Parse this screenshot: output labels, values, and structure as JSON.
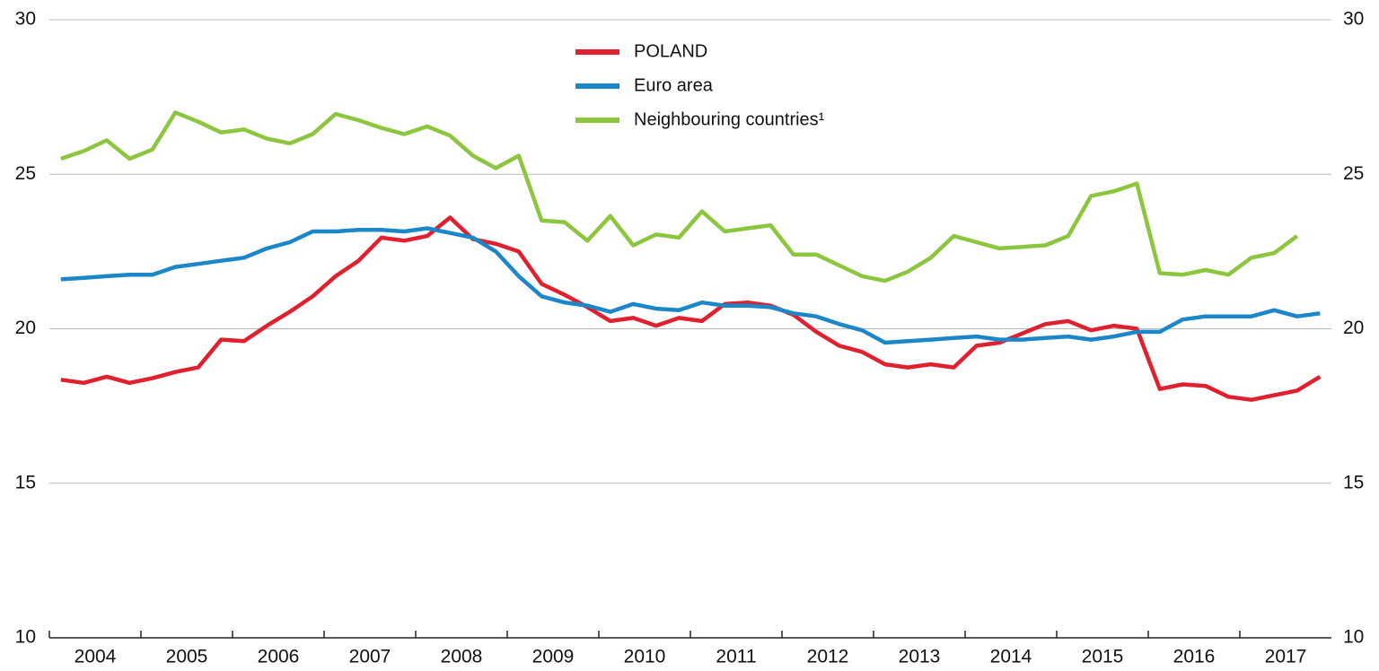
{
  "chart_data": {
    "type": "line",
    "x": [
      2004.125,
      2004.375,
      2004.625,
      2004.875,
      2005.125,
      2005.375,
      2005.625,
      2005.875,
      2006.125,
      2006.375,
      2006.625,
      2006.875,
      2007.125,
      2007.375,
      2007.625,
      2007.875,
      2008.125,
      2008.375,
      2008.625,
      2008.875,
      2009.125,
      2009.375,
      2009.625,
      2009.875,
      2010.125,
      2010.375,
      2010.625,
      2010.875,
      2011.125,
      2011.375,
      2011.625,
      2011.875,
      2012.125,
      2012.375,
      2012.625,
      2012.875,
      2013.125,
      2013.375,
      2013.625,
      2013.875,
      2014.125,
      2014.375,
      2014.625,
      2014.875,
      2015.125,
      2015.375,
      2015.625,
      2015.875,
      2016.125,
      2016.375,
      2016.625,
      2016.875,
      2017.125,
      2017.375,
      2017.625,
      2017.875
    ],
    "series": [
      {
        "name": "POLAND",
        "color": "#e0202e",
        "values": [
          18.35,
          18.25,
          18.45,
          18.25,
          18.4,
          18.6,
          18.75,
          19.65,
          19.6,
          20.1,
          20.55,
          21.05,
          21.7,
          22.2,
          22.95,
          22.85,
          23.0,
          23.6,
          22.9,
          22.75,
          22.5,
          21.45,
          21.1,
          20.7,
          20.25,
          20.35,
          20.1,
          20.35,
          20.25,
          20.8,
          20.85,
          20.75,
          20.45,
          19.9,
          19.45,
          19.25,
          18.85,
          18.75,
          18.85,
          18.75,
          19.45,
          19.55,
          19.85,
          20.15,
          20.25,
          19.95,
          20.1,
          20.0,
          18.05,
          18.2,
          18.15,
          17.8,
          17.7,
          17.85,
          18.0,
          18.45
        ]
      },
      {
        "name": "Euro area",
        "color": "#1b86c8",
        "values": [
          21.6,
          21.65,
          21.7,
          21.75,
          21.75,
          22.0,
          22.1,
          22.2,
          22.3,
          22.6,
          22.8,
          23.15,
          23.15,
          23.2,
          23.2,
          23.15,
          23.25,
          23.1,
          22.95,
          22.5,
          21.7,
          21.05,
          20.85,
          20.75,
          20.55,
          20.8,
          20.65,
          20.6,
          20.85,
          20.75,
          20.75,
          20.7,
          20.5,
          20.4,
          20.15,
          19.95,
          19.55,
          19.6,
          19.65,
          19.7,
          19.75,
          19.65,
          19.65,
          19.7,
          19.75,
          19.65,
          19.75,
          19.9,
          19.9,
          20.3,
          20.4,
          20.4,
          20.4,
          20.6,
          20.4,
          20.5
        ]
      },
      {
        "name": "Neighbouring countries¹",
        "color": "#8cc63f",
        "values": [
          25.5,
          25.75,
          26.1,
          25.5,
          25.8,
          27.0,
          26.7,
          26.35,
          26.45,
          26.15,
          26.0,
          26.3,
          26.95,
          26.75,
          26.5,
          26.3,
          26.55,
          26.25,
          25.6,
          25.2,
          25.6,
          23.5,
          23.45,
          22.85,
          23.65,
          22.7,
          23.05,
          22.95,
          23.8,
          23.15,
          23.25,
          23.35,
          22.4,
          22.4,
          22.05,
          21.7,
          21.55,
          21.85,
          22.3,
          23.0,
          22.8,
          22.6,
          22.65,
          22.7,
          23.0,
          24.3,
          24.45,
          24.7,
          21.8,
          21.75,
          21.9,
          21.75,
          22.3,
          22.45,
          23.0,
          null
        ]
      }
    ],
    "xlim": [
      2004,
      2018
    ],
    "xticks": [
      {
        "value": 2004.5,
        "label": "2004"
      },
      {
        "value": 2005.5,
        "label": "2005"
      },
      {
        "value": 2006.5,
        "label": "2006"
      },
      {
        "value": 2007.5,
        "label": "2007"
      },
      {
        "value": 2008.5,
        "label": "2008"
      },
      {
        "value": 2009.5,
        "label": "2009"
      },
      {
        "value": 2010.5,
        "label": "2010"
      },
      {
        "value": 2011.5,
        "label": "2011"
      },
      {
        "value": 2012.5,
        "label": "2012"
      },
      {
        "value": 2013.5,
        "label": "2013"
      },
      {
        "value": 2014.5,
        "label": "2014"
      },
      {
        "value": 2015.5,
        "label": "2015"
      },
      {
        "value": 2016.5,
        "label": "2016"
      },
      {
        "value": 2017.5,
        "label": "2017"
      }
    ],
    "ylim": [
      10,
      30
    ],
    "yticks": [
      10,
      15,
      20,
      25,
      30
    ],
    "y2lim": [
      10,
      30
    ],
    "y2ticks": [
      10,
      15,
      20,
      25,
      30
    ],
    "grid": true,
    "legend": "top"
  }
}
